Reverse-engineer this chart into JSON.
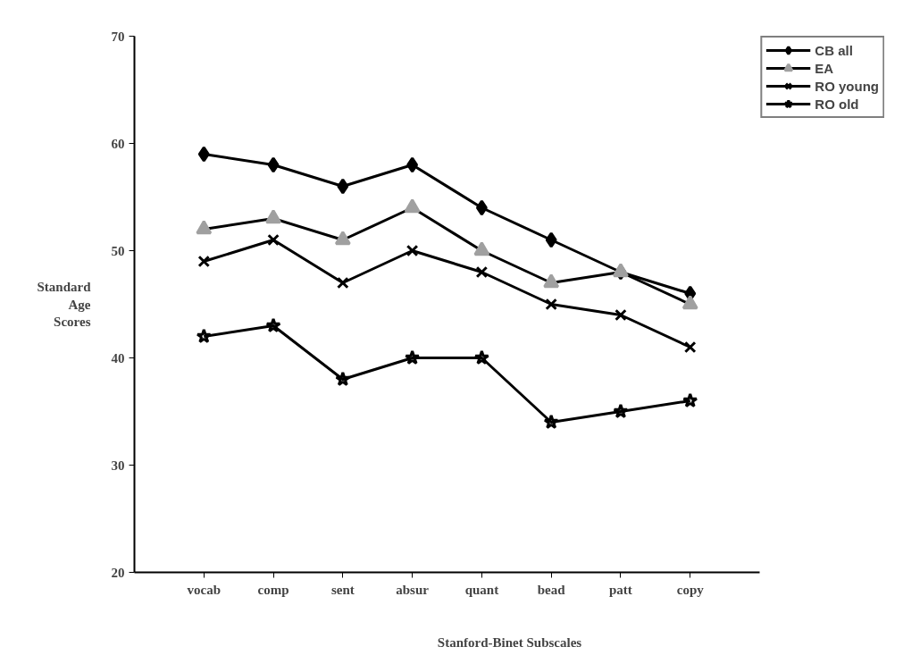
{
  "chart_data": {
    "type": "line",
    "xlabel": "Stanford-Binet Subscales",
    "ylabel": "Standard Age Scores",
    "categories": [
      "vocab",
      "comp",
      "sent",
      "absur",
      "quant",
      "bead",
      "patt",
      "copy"
    ],
    "ylim": [
      20,
      70
    ],
    "yticks": [
      20,
      30,
      40,
      50,
      60,
      70
    ],
    "grid": false,
    "legend": "top right",
    "series": [
      {
        "name": "CB all",
        "color": "#000000",
        "marker": "diamond",
        "values": [
          59,
          58,
          56,
          58,
          54,
          51,
          48,
          46
        ]
      },
      {
        "name": "EA",
        "color": "#a0a0a0",
        "marker": "triangle",
        "values": [
          52,
          53,
          51,
          54,
          50,
          47,
          48,
          45
        ]
      },
      {
        "name": "RO young",
        "color": "#000000",
        "marker": "cross",
        "values": [
          49,
          51,
          47,
          50,
          48,
          45,
          44,
          41
        ]
      },
      {
        "name": "RO old",
        "color": "#000000",
        "marker": "star",
        "values": [
          42,
          43,
          38,
          40,
          40,
          34,
          35,
          36
        ]
      }
    ]
  }
}
